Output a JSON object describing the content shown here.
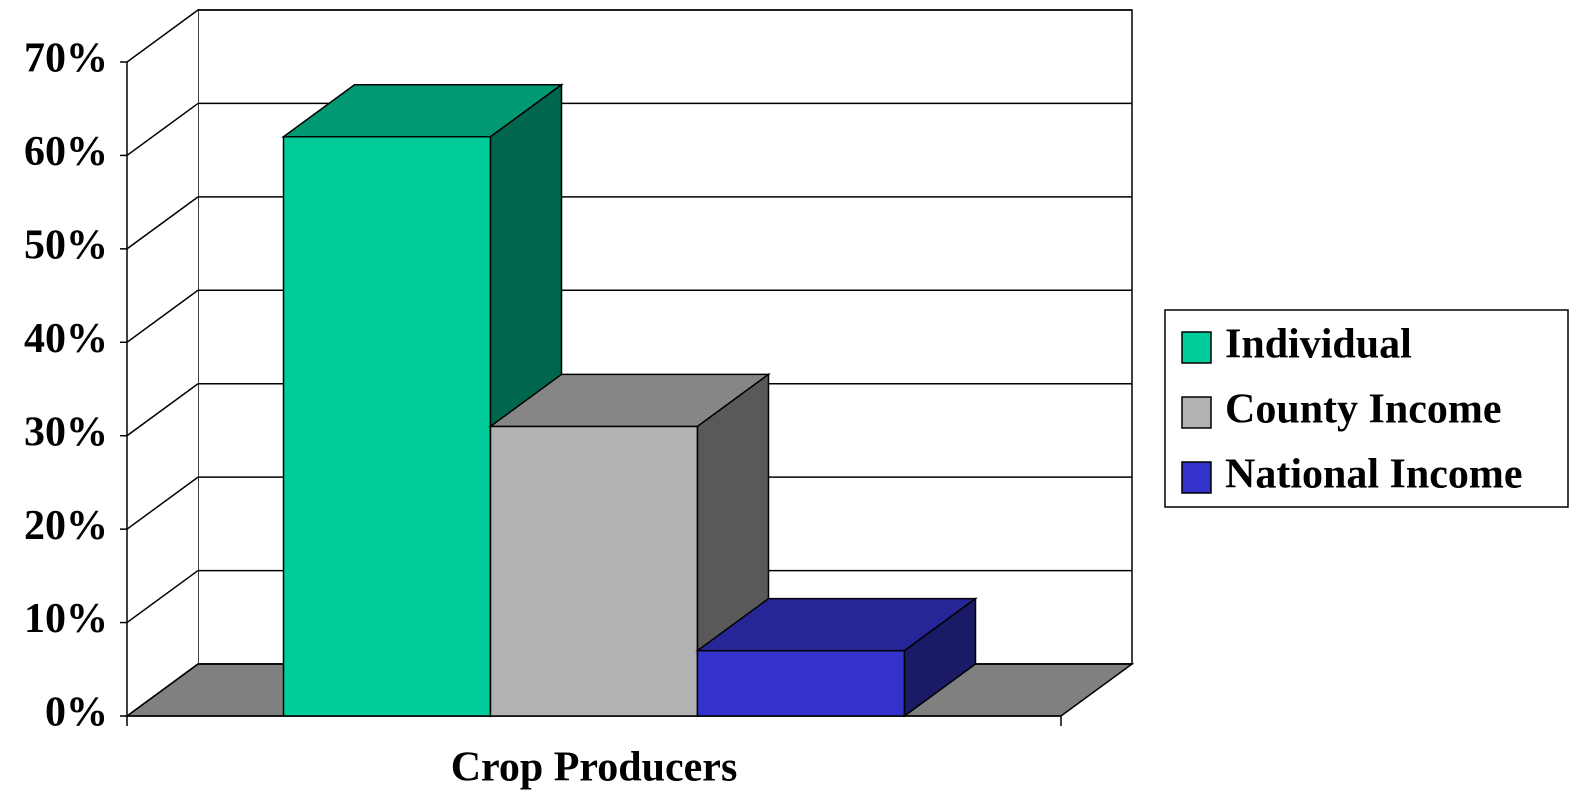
{
  "chart_data": {
    "type": "bar3d",
    "categories": [
      "Crop Producers"
    ],
    "series": [
      {
        "name": "Individual",
        "color": "#00cc99",
        "values": [
          62
        ]
      },
      {
        "name": "County Income",
        "color": "#b2b2b2",
        "values": [
          31
        ]
      },
      {
        "name": "National Income",
        "color": "#3333cc",
        "values": [
          7
        ]
      }
    ],
    "ylim": [
      0,
      70
    ],
    "yticks": [
      {
        "value": 0,
        "label": "0%"
      },
      {
        "value": 10,
        "label": "10%"
      },
      {
        "value": 20,
        "label": "20%"
      },
      {
        "value": 30,
        "label": "30%"
      },
      {
        "value": 40,
        "label": "40%"
      },
      {
        "value": 50,
        "label": "50%"
      },
      {
        "value": 60,
        "label": "60%"
      },
      {
        "value": 70,
        "label": "70%"
      }
    ],
    "grid": true,
    "legend": "right"
  }
}
